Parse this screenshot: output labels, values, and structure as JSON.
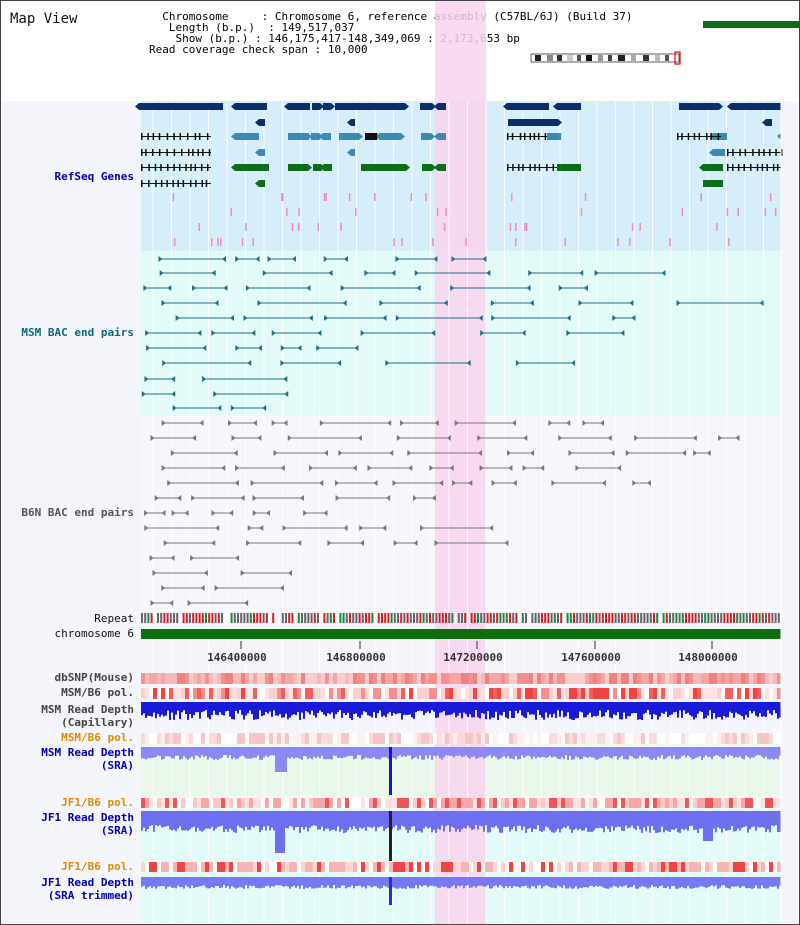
{
  "view_title": "Map View",
  "info": {
    "chromosome_label": "Chromosome",
    "chromosome_value": "Chromosome 6, reference assembly (C57BL/6J) (Build 37)",
    "length_label": "Length (b.p.)",
    "length_value": "149,517,037",
    "show_label": "Show (b.p.)",
    "show_value": "146,175,417-148,349,069 : 2,173,653 bp",
    "coverage_label": "Read coverage check span",
    "coverage_value": "10,000"
  },
  "tracks": {
    "refseq": "RefSeq Genes",
    "msm_bac": "MSM BAC end pairs",
    "b6n_bac": "B6N BAC end pairs",
    "repeat": "Repeat",
    "chromosome": "chromosome 6",
    "dbsnp": "dbSNP(Mouse)",
    "msm_b6_pol_1": "MSM/B6 pol.",
    "msm_read_cap_1": "MSM Read Depth",
    "msm_read_cap_2": "(Capillary)",
    "msm_b6_pol_2": "MSM/B6 pol.",
    "msm_read_sra_1": "MSM Read Depth",
    "msm_read_sra_2": "(SRA)",
    "jf1_b6_pol_1": "JF1/B6 pol.",
    "jf1_read_sra_1": "JF1 Read Depth",
    "jf1_read_sra_2": "(SRA)",
    "jf1_b6_pol_2": "JF1/B6 pol.",
    "jf1_read_trim_1": "JF1 Read Depth",
    "jf1_read_trim_2": "(SRA trimmed)"
  },
  "axis_ticks": [
    "146400000",
    "146800000",
    "147200000",
    "147600000",
    "148000000"
  ],
  "colors": {
    "highlight": "#f9d4ef",
    "refseq_bg": "#d6eef9",
    "msm_bg": "#e2fbf9",
    "gene_dark": "#0b2e6c",
    "gene_mid": "#3a8ab4",
    "gene_green": "#0e6c1a",
    "bac_msm": "#1e6f88",
    "bac_b6n": "#777777",
    "chromosome_bar": "#0e6e0e",
    "label_blue": "#0000aa",
    "label_teal": "#0a6a7a",
    "label_orange": "#e08a00"
  }
}
